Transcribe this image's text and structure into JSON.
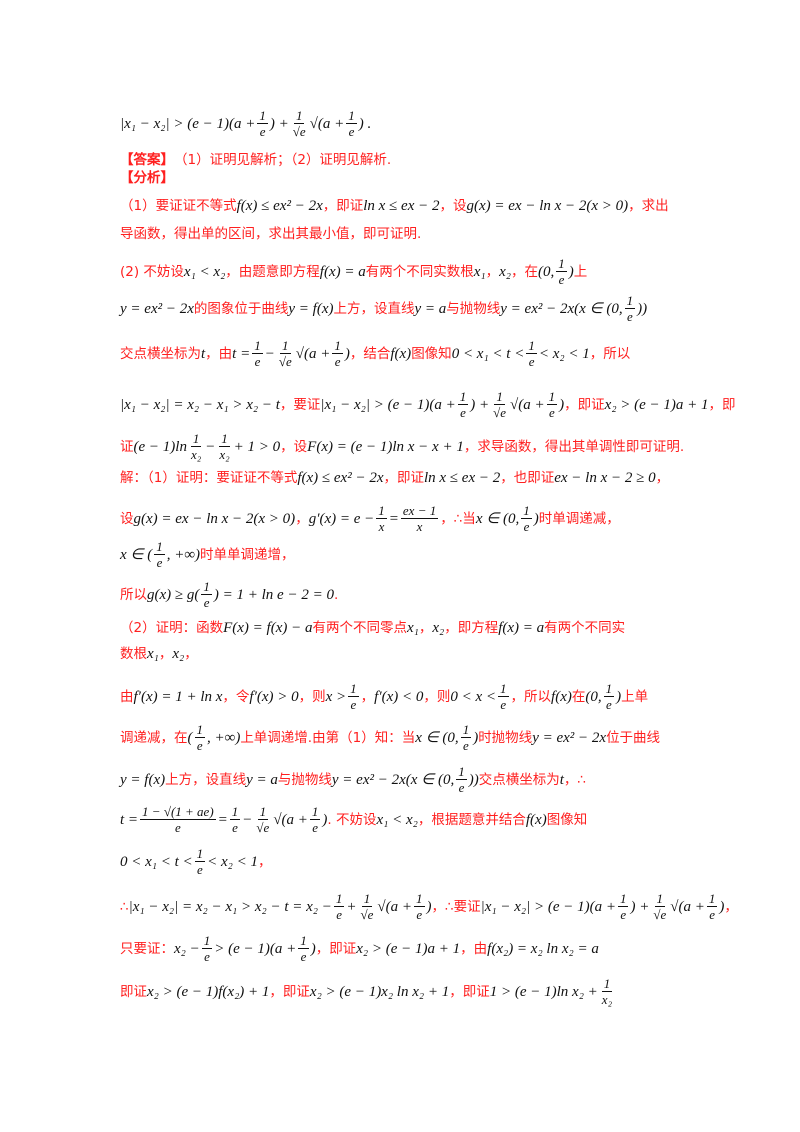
{
  "colors": {
    "prose": "#ff2020",
    "math": "#111111"
  },
  "lines": [
    [
      {
        "m": "|x₁ − x₂| > (e − 1)(a + "
      },
      {
        "f": [
          "1",
          "e"
        ]
      },
      {
        "m": ") + "
      },
      {
        "f": [
          "1",
          "√e"
        ]
      },
      {
        "m": "√(a + "
      },
      {
        "f": [
          "1",
          "e"
        ]
      },
      {
        "m": ") ."
      }
    ],
    [
      {
        "b": "【答案】"
      },
      {
        "r": "（1）证明见解析；（2）证明见解析."
      }
    ],
    [
      {
        "b": "【分析】"
      }
    ],
    [
      {
        "r": "（1）要证证不等式"
      },
      {
        "m": "f(x) ≤ ex² − 2x"
      },
      {
        "r": "，即证"
      },
      {
        "m": "ln x ≤ ex − 2"
      },
      {
        "r": "，设"
      },
      {
        "m": "g(x) = ex − ln x − 2(x > 0)"
      },
      {
        "r": "，求出"
      }
    ],
    [
      {
        "r": "导函数，得出单的区间，求出其最小值，即可证明."
      }
    ],
    [
      {
        "r": "(2) 不妨设"
      },
      {
        "m": "x₁ < x₂"
      },
      {
        "r": "，由题意即方程"
      },
      {
        "m": "f(x) = a"
      },
      {
        "r": "有两个不同实数根"
      },
      {
        "m": "x₁"
      },
      {
        "r": "，"
      },
      {
        "m": "x₂"
      },
      {
        "r": "，在"
      },
      {
        "m": "(0, "
      },
      {
        "f": [
          "1",
          "e"
        ]
      },
      {
        "m": ")"
      },
      {
        "r": "上"
      }
    ],
    [
      {
        "m": "y = ex² − 2x"
      },
      {
        "r": "的图象位于曲线"
      },
      {
        "m": "y = f(x)"
      },
      {
        "r": "上方，设直线"
      },
      {
        "m": "y = a"
      },
      {
        "r": "与抛物线"
      },
      {
        "m": "y = ex² − 2x(x ∈ (0, "
      },
      {
        "f": [
          "1",
          "e"
        ]
      },
      {
        "m": "))"
      }
    ],
    [
      {
        "r": "交点横坐标为"
      },
      {
        "m": "t"
      },
      {
        "r": "，由"
      },
      {
        "m": "t = "
      },
      {
        "f": [
          "1",
          "e"
        ]
      },
      {
        "m": " − "
      },
      {
        "f": [
          "1",
          "√e"
        ]
      },
      {
        "m": "√(a + "
      },
      {
        "f": [
          "1",
          "e"
        ]
      },
      {
        "m": ")"
      },
      {
        "r": "，结合"
      },
      {
        "m": "f(x)"
      },
      {
        "r": "图像知"
      },
      {
        "m": "0 < x₁ < t < "
      },
      {
        "f": [
          "1",
          "e"
        ]
      },
      {
        "m": " < x₂ < 1"
      },
      {
        "r": "，所以"
      }
    ],
    [
      {
        "m": "|x₁ − x₂| = x₂ − x₁ > x₂ − t"
      },
      {
        "r": "，要证"
      },
      {
        "m": "|x₁ − x₂| > (e − 1)(a + "
      },
      {
        "f": [
          "1",
          "e"
        ]
      },
      {
        "m": ") + "
      },
      {
        "f": [
          "1",
          "√e"
        ]
      },
      {
        "m": "√(a + "
      },
      {
        "f": [
          "1",
          "e"
        ]
      },
      {
        "m": ")"
      },
      {
        "r": "，即证"
      },
      {
        "m": "x₂ > (e − 1)a + 1"
      },
      {
        "r": "，即"
      }
    ],
    [
      {
        "r": "证"
      },
      {
        "m": "(e − 1)ln "
      },
      {
        "f": [
          "1",
          "x₂"
        ]
      },
      {
        "m": " − "
      },
      {
        "f": [
          "1",
          "x₂"
        ]
      },
      {
        "m": " + 1 > 0"
      },
      {
        "r": "，设"
      },
      {
        "m": "F(x) = (e − 1)ln x − x + 1"
      },
      {
        "r": "，求导函数，得出其单调性即可证明."
      }
    ],
    [
      {
        "r": "解：（1）证明：要证证不等式"
      },
      {
        "m": "f(x) ≤ ex² − 2x"
      },
      {
        "r": "，即证"
      },
      {
        "m": "ln x ≤ ex − 2"
      },
      {
        "r": "，也即证"
      },
      {
        "m": "ex − ln x − 2 ≥ 0"
      },
      {
        "r": "，"
      }
    ],
    [
      {
        "r": "设"
      },
      {
        "m": "g(x) = ex − ln x − 2(x > 0)"
      },
      {
        "r": "，"
      },
      {
        "m": "g′(x) = e − "
      },
      {
        "f": [
          "1",
          "x"
        ]
      },
      {
        "m": " = "
      },
      {
        "f": [
          "ex − 1",
          "x"
        ]
      },
      {
        "r": "，∴当"
      },
      {
        "m": "x ∈ (0, "
      },
      {
        "f": [
          "1",
          "e"
        ]
      },
      {
        "m": ")"
      },
      {
        "r": "时单调递减，"
      }
    ],
    [
      {
        "m": "x ∈ ("
      },
      {
        "f": [
          "1",
          "e"
        ]
      },
      {
        "m": ", +∞)"
      },
      {
        "r": "时单单调递增，"
      }
    ],
    [
      {
        "r": "所以"
      },
      {
        "m": "g(x) ≥ g("
      },
      {
        "f": [
          "1",
          "e"
        ]
      },
      {
        "m": ") = 1 + ln e − 2 = 0"
      },
      {
        "r": "."
      }
    ],
    [
      {
        "r": "（2）证明：函数"
      },
      {
        "m": "F(x) = f(x) − a"
      },
      {
        "r": "有两个不同零点"
      },
      {
        "m": "x₁"
      },
      {
        "r": "，"
      },
      {
        "m": "x₂"
      },
      {
        "r": "，即方程"
      },
      {
        "m": "f(x) = a"
      },
      {
        "r": "有两个不同实"
      }
    ],
    [
      {
        "r": "数根"
      },
      {
        "m": "x₁"
      },
      {
        "r": "，"
      },
      {
        "m": "x₂"
      },
      {
        "r": "，"
      }
    ],
    [
      {
        "r": "由"
      },
      {
        "m": "f′(x) = 1 + ln x"
      },
      {
        "r": "，令"
      },
      {
        "m": "f′(x) > 0"
      },
      {
        "r": "，则"
      },
      {
        "m": "x > "
      },
      {
        "f": [
          "1",
          "e"
        ]
      },
      {
        "r": "，"
      },
      {
        "m": "f′(x) < 0"
      },
      {
        "r": "，则"
      },
      {
        "m": "0 < x < "
      },
      {
        "f": [
          "1",
          "e"
        ]
      },
      {
        "r": "，所以"
      },
      {
        "m": "f(x)"
      },
      {
        "r": "在"
      },
      {
        "m": "(0, "
      },
      {
        "f": [
          "1",
          "e"
        ]
      },
      {
        "m": ")"
      },
      {
        "r": "上单"
      }
    ],
    [
      {
        "r": "调递减，在"
      },
      {
        "m": "("
      },
      {
        "f": [
          "1",
          "e"
        ]
      },
      {
        "m": ", +∞)"
      },
      {
        "r": "上单调递增.由第（1）知：当"
      },
      {
        "m": "x ∈ (0, "
      },
      {
        "f": [
          "1",
          "e"
        ]
      },
      {
        "m": ")"
      },
      {
        "r": "时抛物线"
      },
      {
        "m": "y = ex² − 2x"
      },
      {
        "r": "位于曲线"
      }
    ],
    [
      {
        "m": "y = f(x)"
      },
      {
        "r": "上方，设直线"
      },
      {
        "m": "y = a"
      },
      {
        "r": "与抛物线"
      },
      {
        "m": "y = ex² − 2x(x ∈ (0, "
      },
      {
        "f": [
          "1",
          "e"
        ]
      },
      {
        "m": "))"
      },
      {
        "r": "交点横坐标为"
      },
      {
        "m": "t"
      },
      {
        "r": "，∴"
      }
    ],
    [
      {
        "m": "t = "
      },
      {
        "f": [
          "1 − √(1 + ae)",
          "e"
        ]
      },
      {
        "m": " = "
      },
      {
        "f": [
          "1",
          "e"
        ]
      },
      {
        "m": " − "
      },
      {
        "f": [
          "1",
          "√e"
        ]
      },
      {
        "m": "√(a + "
      },
      {
        "f": [
          "1",
          "e"
        ]
      },
      {
        "m": ")"
      },
      {
        "r": ". 不妨设"
      },
      {
        "m": "x₁ < x₂"
      },
      {
        "r": "，根据题意并结合"
      },
      {
        "m": "f(x)"
      },
      {
        "r": "图像知"
      }
    ],
    [
      {
        "m": "0 < x₁ < t < "
      },
      {
        "f": [
          "1",
          "e"
        ]
      },
      {
        "m": " < x₂ < 1"
      },
      {
        "r": "，"
      }
    ],
    [
      {
        "r": "∴"
      },
      {
        "m": "|x₁ − x₂| = x₂ − x₁ > x₂ − t = x₂ − "
      },
      {
        "f": [
          "1",
          "e"
        ]
      },
      {
        "m": " + "
      },
      {
        "f": [
          "1",
          "√e"
        ]
      },
      {
        "m": "√(a + "
      },
      {
        "f": [
          "1",
          "e"
        ]
      },
      {
        "m": ")"
      },
      {
        "r": "，∴要证"
      },
      {
        "m": "|x₁ − x₂| > (e − 1)(a + "
      },
      {
        "f": [
          "1",
          "e"
        ]
      },
      {
        "m": ") + "
      },
      {
        "f": [
          "1",
          "√e"
        ]
      },
      {
        "m": "√(a + "
      },
      {
        "f": [
          "1",
          "e"
        ]
      },
      {
        "m": ")"
      },
      {
        "r": "，"
      }
    ],
    [
      {
        "r": "只要证："
      },
      {
        "m": "x₂ − "
      },
      {
        "f": [
          "1",
          "e"
        ]
      },
      {
        "m": " > (e − 1)(a + "
      },
      {
        "f": [
          "1",
          "e"
        ]
      },
      {
        "m": ")"
      },
      {
        "r": "，即证"
      },
      {
        "m": "x₂ > (e − 1)a + 1"
      },
      {
        "r": "，由"
      },
      {
        "m": "f(x₂) = x₂ ln x₂ = a"
      }
    ],
    [
      {
        "r": "即证"
      },
      {
        "m": "x₂ > (e − 1)f(x₂) + 1"
      },
      {
        "r": "，即证"
      },
      {
        "m": "x₂ > (e − 1)x₂ ln x₂ + 1"
      },
      {
        "r": "，即证"
      },
      {
        "m": "1 > (e − 1)ln x₂ + "
      },
      {
        "f": [
          "1",
          "x₂"
        ]
      }
    ]
  ]
}
